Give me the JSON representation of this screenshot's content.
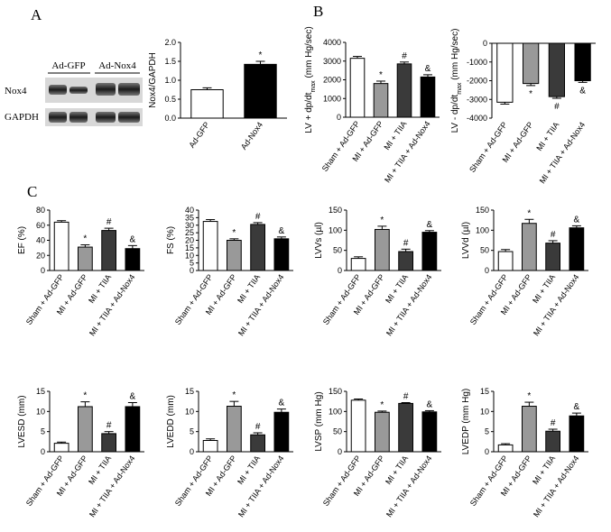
{
  "panel_labels": [
    "A",
    "B",
    "C"
  ],
  "blot": {
    "lanes": [
      "Ad-GFP",
      "Ad-Nox4"
    ],
    "rows": [
      "Nox4",
      "GAPDH"
    ]
  },
  "chart_data": [
    {
      "type": "bar",
      "ylabel": {
        "text": "Nox4/GAPDH"
      },
      "categories": [
        "Ad-GFP",
        "Ad-Nox4"
      ],
      "values": [
        0.75,
        1.42
      ],
      "errors": [
        0.05,
        0.08
      ],
      "colors": [
        "#ffffff",
        "#000000"
      ],
      "annotations": [
        null,
        "*"
      ],
      "ylim": [
        0,
        2
      ],
      "yticks": [
        {
          "value": 0,
          "label": "0.0"
        },
        0.5,
        {
          "value": 1,
          "label": "1.0"
        },
        1.5,
        {
          "value": 2,
          "label": "2.0"
        }
      ]
    },
    {
      "type": "bar",
      "ylabel": {
        "text": "LV + dp/dt",
        "sub": "max",
        "unit": " (mm Hg/sec)"
      },
      "categories": [
        "Sham + Ad-GFP",
        "MI + Ad-GFP",
        "MI + TIIA",
        "MI + TIIA + Ad-Nox4"
      ],
      "values": [
        3150,
        1800,
        2850,
        2150
      ],
      "errors": [
        100,
        130,
        100,
        120
      ],
      "colors": [
        "#ffffff",
        "#999999",
        "#3a3a3a",
        "#000000"
      ],
      "annotations": [
        null,
        "*",
        "#",
        "&"
      ],
      "ylim": [
        0,
        4000
      ],
      "yticks": [
        0,
        1000,
        2000,
        3000,
        4000
      ]
    },
    {
      "type": "bar",
      "ylabel": {
        "text": "LV - dp/dt",
        "sub": "max",
        "unit": " (mm Hg/sec)"
      },
      "categories": [
        "Sham + Ad-GFP",
        "MI + Ad-GFP",
        "MI + TIIA",
        "MI + TIIA + Ad-Nox4"
      ],
      "values": [
        -3150,
        -2150,
        -2850,
        -2000
      ],
      "errors": [
        100,
        110,
        90,
        90
      ],
      "colors": [
        "#ffffff",
        "#999999",
        "#3a3a3a",
        "#000000"
      ],
      "annotations": [
        null,
        "*",
        "#",
        "&"
      ],
      "ylim": [
        -4000,
        0
      ],
      "yticks": [
        0,
        -1000,
        -2000,
        -3000,
        -4000
      ]
    },
    {
      "type": "bar",
      "ylabel": {
        "text": "EF (%)"
      },
      "categories": [
        "Sham + Ad-GFP",
        "MI + Ad-GFP",
        "MI + TIIA",
        "MI + TIIA + Ad-Nox4"
      ],
      "values": [
        64,
        31,
        53,
        29
      ],
      "errors": [
        2,
        3,
        3,
        4
      ],
      "colors": [
        "#ffffff",
        "#999999",
        "#3a3a3a",
        "#000000"
      ],
      "annotations": [
        null,
        "*",
        "#",
        "&"
      ],
      "ylim": [
        0,
        80
      ],
      "yticks": [
        0,
        20,
        40,
        60,
        80
      ]
    },
    {
      "type": "bar",
      "ylabel": {
        "text": "FS (%)"
      },
      "categories": [
        "Sham + Ad-GFP",
        "MI + Ad-GFP",
        "MI + TIIA",
        "MI + TIIA + Ad-Nox4"
      ],
      "values": [
        32.5,
        20,
        30.5,
        21
      ],
      "errors": [
        1.2,
        1,
        1.2,
        1.2
      ],
      "colors": [
        "#ffffff",
        "#999999",
        "#3a3a3a",
        "#000000"
      ],
      "annotations": [
        null,
        "*",
        "#",
        "&"
      ],
      "ylim": [
        0,
        40
      ],
      "yticks": [
        0,
        5,
        10,
        15,
        20,
        25,
        30,
        35,
        40
      ]
    },
    {
      "type": "bar",
      "ylabel": {
        "text": "LVVs (µl)"
      },
      "categories": [
        "Sham + Ad-GFP",
        "MI + Ad-GFP",
        "MI + TIIA",
        "MI + TIIA + Ad-Nox4"
      ],
      "values": [
        30,
        102,
        47,
        95
      ],
      "errors": [
        4,
        8,
        6,
        4
      ],
      "colors": [
        "#ffffff",
        "#999999",
        "#3a3a3a",
        "#000000"
      ],
      "annotations": [
        null,
        "*",
        "#",
        "&"
      ],
      "ylim": [
        0,
        150
      ],
      "yticks": [
        0,
        50,
        100,
        150
      ]
    },
    {
      "type": "bar",
      "ylabel": {
        "text": "LVVd (µl)"
      },
      "categories": [
        "Sham + Ad-GFP",
        "MI + Ad-GFP",
        "MI + TIIA",
        "MI + TIIA + Ad-Nox4"
      ],
      "values": [
        47,
        117,
        68,
        106
      ],
      "errors": [
        5,
        10,
        6,
        5
      ],
      "colors": [
        "#ffffff",
        "#999999",
        "#3a3a3a",
        "#000000"
      ],
      "annotations": [
        null,
        "*",
        "#",
        "&"
      ],
      "ylim": [
        0,
        150
      ],
      "yticks": [
        0,
        50,
        100,
        150
      ]
    },
    {
      "type": "bar",
      "ylabel": {
        "text": "LVESD (mm)"
      },
      "categories": [
        "Sham + Ad-GFP",
        "MI + Ad-GFP",
        "MI + TIIA",
        "MI + TIIA + Ad-Nox4"
      ],
      "values": [
        2.1,
        11.2,
        4.5,
        11.2
      ],
      "errors": [
        0.3,
        1.2,
        0.5,
        1
      ],
      "colors": [
        "#ffffff",
        "#999999",
        "#3a3a3a",
        "#000000"
      ],
      "annotations": [
        null,
        "*",
        "#",
        "&"
      ],
      "ylim": [
        0,
        15
      ],
      "yticks": [
        0,
        5,
        10,
        15
      ]
    },
    {
      "type": "bar",
      "ylabel": {
        "text": "LVEDD (mm)"
      },
      "categories": [
        "Sham + Ad-GFP",
        "MI + Ad-GFP",
        "MI + TIIA",
        "MI + TIIA + Ad-Nox4"
      ],
      "values": [
        2.8,
        11.3,
        4.2,
        9.8
      ],
      "errors": [
        0.4,
        1.2,
        0.5,
        0.8
      ],
      "colors": [
        "#ffffff",
        "#999999",
        "#3a3a3a",
        "#000000"
      ],
      "annotations": [
        null,
        "*",
        "#",
        "&"
      ],
      "ylim": [
        0,
        15
      ],
      "yticks": [
        0,
        5,
        10,
        15
      ]
    },
    {
      "type": "bar",
      "ylabel": {
        "text": "LVSP (mm Hg)"
      },
      "categories": [
        "Sham + Ad-GFP",
        "MI + Ad-GFP",
        "MI + TIIA",
        "MI + TIIA + Ad-Nox4"
      ],
      "values": [
        128,
        98,
        120,
        99
      ],
      "errors": [
        3,
        3,
        2,
        3
      ],
      "colors": [
        "#ffffff",
        "#999999",
        "#3a3a3a",
        "#000000"
      ],
      "annotations": [
        null,
        "*",
        "#",
        "&"
      ],
      "ylim": [
        0,
        150
      ],
      "yticks": [
        0,
        50,
        100,
        150
      ]
    },
    {
      "type": "bar",
      "ylabel": {
        "text": "LVEDP (mm Hg)"
      },
      "categories": [
        "Sham + Ad-GFP",
        "MI + Ad-GFP",
        "MI + TIIA",
        "MI + TIIA + Ad-Nox4"
      ],
      "values": [
        1.7,
        11.3,
        5.1,
        8.9
      ],
      "errors": [
        0.3,
        1,
        0.5,
        0.7
      ],
      "colors": [
        "#ffffff",
        "#999999",
        "#3a3a3a",
        "#000000"
      ],
      "annotations": [
        null,
        "*",
        "#",
        "&"
      ],
      "ylim": [
        0,
        15
      ],
      "yticks": [
        0,
        5,
        10,
        15
      ]
    }
  ]
}
